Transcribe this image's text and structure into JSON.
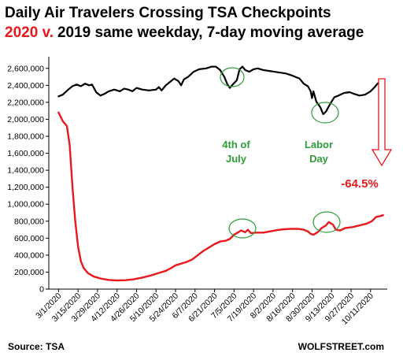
{
  "chart_data": {
    "type": "line",
    "title_line1": "Daily Air Travelers Crossing TSA Checkpoints",
    "title_line2_red": "2020 v.",
    "title_line2_rest": "2019 same weekday, 7-day moving average",
    "x_tick_labels": [
      "3/1/2020",
      "3/15/2020",
      "3/29/2020",
      "4/12/2020",
      "4/26/2020",
      "5/10/2020",
      "5/24/2020",
      "6/7/2020",
      "6/21/2020",
      "7/5/2020",
      "7/19/2020",
      "8/2/2020",
      "8/16/2020",
      "8/30/2020",
      "9/13/2020",
      "9/27/2020",
      "10/11/2020"
    ],
    "x_tick_days": [
      0,
      14,
      28,
      42,
      56,
      70,
      84,
      98,
      112,
      126,
      140,
      154,
      168,
      182,
      196,
      210,
      224
    ],
    "x_range_days": [
      -7,
      236
    ],
    "y_ticks": [
      0,
      200000,
      400000,
      600000,
      800000,
      1000000,
      1200000,
      1400000,
      1600000,
      1800000,
      2000000,
      2200000,
      2400000,
      2600000
    ],
    "y_tick_labels": [
      "0",
      "200,000",
      "400,000",
      "600,000",
      "800,000",
      "1,000,000",
      "1,200,000",
      "1,400,000",
      "1,600,000",
      "1,800,000",
      "2,000,000",
      "2,200,000",
      "2,400,000",
      "2,600,000"
    ],
    "ylim": [
      0,
      2700000
    ],
    "grid": false,
    "series": [
      {
        "color": "#000000",
        "points": [
          [
            0,
            2270000
          ],
          [
            3,
            2290000
          ],
          [
            7,
            2350000
          ],
          [
            10,
            2390000
          ],
          [
            13,
            2410000
          ],
          [
            16,
            2390000
          ],
          [
            19,
            2420000
          ],
          [
            22,
            2400000
          ],
          [
            24,
            2410000
          ],
          [
            27,
            2320000
          ],
          [
            30,
            2280000
          ],
          [
            33,
            2300000
          ],
          [
            36,
            2330000
          ],
          [
            40,
            2350000
          ],
          [
            44,
            2330000
          ],
          [
            47,
            2360000
          ],
          [
            50,
            2350000
          ],
          [
            53,
            2330000
          ],
          [
            56,
            2370000
          ],
          [
            60,
            2350000
          ],
          [
            65,
            2340000
          ],
          [
            70,
            2350000
          ],
          [
            72,
            2380000
          ],
          [
            74,
            2340000
          ],
          [
            77,
            2400000
          ],
          [
            80,
            2440000
          ],
          [
            83,
            2480000
          ],
          [
            86,
            2450000
          ],
          [
            88,
            2400000
          ],
          [
            90,
            2470000
          ],
          [
            93,
            2500000
          ],
          [
            97,
            2560000
          ],
          [
            101,
            2590000
          ],
          [
            106,
            2600000
          ],
          [
            110,
            2620000
          ],
          [
            113,
            2620000
          ],
          [
            116,
            2580000
          ],
          [
            119,
            2500000
          ],
          [
            121,
            2420000
          ],
          [
            123,
            2370000
          ],
          [
            125,
            2410000
          ],
          [
            128,
            2460000
          ],
          [
            130,
            2590000
          ],
          [
            132,
            2620000
          ],
          [
            134,
            2580000
          ],
          [
            137,
            2560000
          ],
          [
            140,
            2590000
          ],
          [
            143,
            2600000
          ],
          [
            147,
            2580000
          ],
          [
            151,
            2570000
          ],
          [
            155,
            2560000
          ],
          [
            159,
            2550000
          ],
          [
            163,
            2540000
          ],
          [
            167,
            2520000
          ],
          [
            170,
            2500000
          ],
          [
            173,
            2480000
          ],
          [
            176,
            2420000
          ],
          [
            179,
            2390000
          ],
          [
            181,
            2330000
          ],
          [
            182,
            2250000
          ],
          [
            183,
            2330000
          ],
          [
            185,
            2210000
          ],
          [
            188,
            2140000
          ],
          [
            190,
            2060000
          ],
          [
            192,
            2090000
          ],
          [
            195,
            2180000
          ],
          [
            198,
            2260000
          ],
          [
            201,
            2280000
          ],
          [
            205,
            2310000
          ],
          [
            209,
            2320000
          ],
          [
            212,
            2300000
          ],
          [
            216,
            2280000
          ],
          [
            220,
            2290000
          ],
          [
            224,
            2330000
          ],
          [
            227,
            2380000
          ],
          [
            229,
            2420000
          ],
          [
            231,
            2440000
          ],
          [
            233,
            2430000
          ]
        ]
      },
      {
        "color": "#e8181d",
        "points": [
          [
            0,
            2080000
          ],
          [
            3,
            1980000
          ],
          [
            6,
            1920000
          ],
          [
            8,
            1700000
          ],
          [
            10,
            1200000
          ],
          [
            12,
            800000
          ],
          [
            14,
            500000
          ],
          [
            16,
            330000
          ],
          [
            18,
            250000
          ],
          [
            21,
            190000
          ],
          [
            25,
            150000
          ],
          [
            30,
            125000
          ],
          [
            36,
            108000
          ],
          [
            42,
            102000
          ],
          [
            48,
            105000
          ],
          [
            54,
            115000
          ],
          [
            60,
            135000
          ],
          [
            66,
            160000
          ],
          [
            72,
            190000
          ],
          [
            77,
            215000
          ],
          [
            80,
            240000
          ],
          [
            84,
            280000
          ],
          [
            88,
            300000
          ],
          [
            92,
            320000
          ],
          [
            96,
            350000
          ],
          [
            100,
            400000
          ],
          [
            104,
            450000
          ],
          [
            108,
            490000
          ],
          [
            112,
            530000
          ],
          [
            116,
            560000
          ],
          [
            120,
            570000
          ],
          [
            123,
            590000
          ],
          [
            126,
            640000
          ],
          [
            129,
            670000
          ],
          [
            131,
            690000
          ],
          [
            134,
            670000
          ],
          [
            136,
            700000
          ],
          [
            138,
            660000
          ],
          [
            142,
            665000
          ],
          [
            147,
            665000
          ],
          [
            152,
            680000
          ],
          [
            157,
            695000
          ],
          [
            162,
            705000
          ],
          [
            167,
            710000
          ],
          [
            172,
            710000
          ],
          [
            176,
            700000
          ],
          [
            179,
            680000
          ],
          [
            181,
            650000
          ],
          [
            183,
            640000
          ],
          [
            186,
            670000
          ],
          [
            189,
            720000
          ],
          [
            192,
            750000
          ],
          [
            194,
            790000
          ],
          [
            197,
            760000
          ],
          [
            199,
            700000
          ],
          [
            202,
            690000
          ],
          [
            206,
            720000
          ],
          [
            211,
            730000
          ],
          [
            216,
            750000
          ],
          [
            221,
            770000
          ],
          [
            225,
            800000
          ],
          [
            228,
            850000
          ],
          [
            231,
            860000
          ],
          [
            233,
            870000
          ]
        ]
      }
    ],
    "annotations": {
      "july4_line1": "4th of",
      "july4_line2": "July",
      "labor_line1": "Labor",
      "labor_line2": "Day",
      "pct": "-64.5%"
    },
    "source": "Source: TSA",
    "brand": "WOLFSTREET.com"
  }
}
